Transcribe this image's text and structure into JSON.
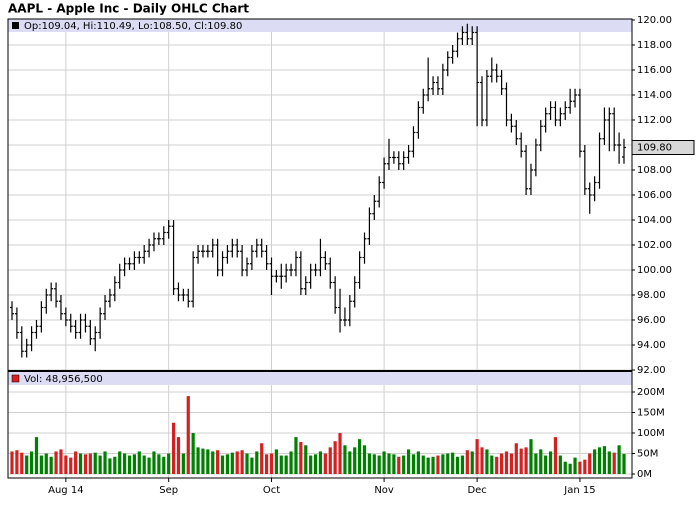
{
  "chart_data": [
    {
      "type": "ohlc",
      "title": "AAPL - Apple Inc - Daily OHLC Chart",
      "legend_text": "Op:109.04, Hi:110.49, Lo:108.50, Cl:109.80",
      "last_label": {
        "value": 109.8,
        "label": "109.80"
      },
      "color": "#000000",
      "grid": true,
      "ylim": [
        92,
        120
      ],
      "yticks": [
        {
          "value": 92,
          "label": "92.00"
        },
        {
          "value": 94,
          "label": "94.00"
        },
        {
          "value": 96,
          "label": "96.00"
        },
        {
          "value": 98,
          "label": "98.00"
        },
        {
          "value": 100,
          "label": "100.00"
        },
        {
          "value": 102,
          "label": "102.00"
        },
        {
          "value": 104,
          "label": "104.00"
        },
        {
          "value": 106,
          "label": "106.00"
        },
        {
          "value": 108,
          "label": "108.00"
        },
        {
          "value": 110,
          "label": "110.00"
        },
        {
          "value": 112,
          "label": "112.00"
        },
        {
          "value": 114,
          "label": "114.00"
        },
        {
          "value": 116,
          "label": "116.00"
        },
        {
          "value": 118,
          "label": "118.00"
        },
        {
          "value": 120,
          "label": "120.00"
        }
      ],
      "open": [
        97,
        96.5,
        95,
        93.5,
        94,
        95,
        95.5,
        97,
        98,
        98.5,
        97.5,
        96.5,
        96,
        95.5,
        95,
        96,
        95.5,
        94.5,
        95,
        96.5,
        97.5,
        98,
        99,
        100,
        100.5,
        100.5,
        101,
        101,
        101.5,
        102,
        102.5,
        102.5,
        103,
        103.5,
        98.5,
        98,
        98,
        97.5,
        101,
        101.5,
        101.5,
        101.5,
        102,
        100,
        101,
        101.5,
        102,
        101.5,
        100,
        100.5,
        101.5,
        102,
        101.5,
        100.5,
        99.5,
        99.5,
        99.5,
        100,
        100,
        101,
        98.5,
        99,
        100,
        100,
        101,
        100.5,
        99,
        97,
        96,
        96,
        97.5,
        99,
        101,
        102.5,
        104.5,
        105.5,
        107,
        108.5,
        109,
        109,
        108.5,
        109,
        109.5,
        111,
        113,
        114,
        114.5,
        115,
        114.5,
        116,
        117,
        117.5,
        118.5,
        119,
        118.5,
        119,
        115,
        112,
        115.5,
        116,
        115.5,
        114.5,
        112,
        111.5,
        110.5,
        109.5,
        106.5,
        108,
        110,
        111.5,
        112.5,
        113,
        112,
        112.5,
        113,
        113.5,
        114,
        109.5,
        106.5,
        106,
        107,
        110.5,
        112,
        112.5,
        110,
        109.04
      ],
      "high": [
        97.5,
        97,
        95.5,
        94.5,
        95.5,
        96,
        97.5,
        98.5,
        99,
        99,
        98,
        97,
        96.5,
        96,
        96.5,
        96.5,
        96,
        95.5,
        97,
        98,
        98.5,
        99.5,
        100.5,
        101,
        101,
        101.5,
        101.5,
        102,
        102.5,
        103,
        103,
        103.5,
        104,
        104,
        99,
        98.5,
        98.5,
        101.5,
        102,
        102,
        102,
        102.5,
        102.5,
        101.5,
        102,
        102.5,
        102.5,
        102,
        101,
        102,
        102.5,
        102.5,
        102,
        101,
        100,
        100.5,
        100.5,
        100.5,
        101.5,
        101.5,
        99.5,
        100.5,
        100.5,
        102.5,
        101.5,
        101,
        99.5,
        98.5,
        97,
        98,
        99.5,
        101.5,
        103,
        105,
        106,
        107.5,
        109,
        110.5,
        109.5,
        109.5,
        109.5,
        110,
        111.5,
        113.5,
        114.5,
        117,
        115.5,
        115.5,
        116.5,
        117.5,
        118,
        119,
        119.5,
        119.7,
        119.5,
        119.5,
        115.5,
        116,
        117,
        116.5,
        116,
        115,
        112.5,
        112,
        111,
        110,
        108.5,
        110.5,
        112,
        113,
        113.5,
        113.5,
        113,
        113.5,
        114.5,
        114.5,
        114.5,
        110,
        107,
        107.5,
        111,
        113,
        113,
        113,
        111,
        110.49
      ],
      "low": [
        96,
        94.5,
        93,
        93,
        93.5,
        94.5,
        95,
        96.5,
        97.5,
        97,
        96,
        95.5,
        95,
        94.5,
        94.5,
        95,
        94,
        93.5,
        94.5,
        96,
        97,
        97.5,
        98.5,
        99.5,
        100,
        100,
        100.5,
        100.5,
        101,
        101.5,
        102,
        102,
        102.5,
        98,
        97.5,
        97.5,
        97,
        97,
        100.5,
        101,
        101,
        101,
        99.5,
        99.5,
        100.5,
        101,
        101,
        99.5,
        99.5,
        100,
        101,
        101,
        100,
        98,
        99,
        98.5,
        99,
        99.5,
        99.5,
        98,
        98,
        98.5,
        99.5,
        99.5,
        100,
        98.5,
        96.5,
        95,
        95.5,
        95.5,
        97,
        98.5,
        100.5,
        102,
        104,
        105,
        106.5,
        108,
        108.5,
        108,
        108,
        108.5,
        109,
        110.5,
        112.5,
        113.5,
        114,
        114,
        114,
        115.5,
        116.5,
        117,
        118,
        118,
        118,
        111.5,
        111.5,
        111.5,
        115,
        115,
        114,
        111.5,
        111,
        110,
        109,
        106,
        106,
        107.5,
        109.5,
        111,
        112,
        111.5,
        111.5,
        112,
        112.5,
        113,
        109,
        106,
        104.5,
        105.5,
        106.5,
        110,
        109.5,
        109.5,
        108.5,
        108.5
      ],
      "close": [
        96.5,
        95,
        93.5,
        94,
        95,
        95.5,
        97,
        98,
        98.5,
        97.5,
        96.5,
        96,
        95.5,
        95,
        96,
        95.5,
        94.5,
        95,
        96.5,
        97.5,
        98,
        99,
        100,
        100.5,
        100.5,
        101,
        101,
        101.5,
        102,
        102.5,
        102.5,
        103,
        103.5,
        98.5,
        98,
        98,
        97.5,
        101,
        101.5,
        101.5,
        101.5,
        102,
        100,
        101,
        101.5,
        102,
        101.5,
        100,
        100.5,
        101.5,
        102,
        101.5,
        100.5,
        99.5,
        99.5,
        99.5,
        100,
        100,
        101,
        98.5,
        99,
        100,
        100,
        101,
        100.5,
        99,
        97,
        96,
        96,
        97.5,
        99,
        101,
        102.5,
        104.5,
        105.5,
        107,
        108.5,
        109,
        109,
        108.5,
        109,
        109.5,
        111,
        113,
        114,
        114.5,
        115,
        114.5,
        116,
        117,
        117.5,
        118.5,
        119,
        118.5,
        119,
        115,
        112,
        115.5,
        116,
        115.5,
        114.5,
        112,
        111.5,
        110.5,
        109.5,
        106.5,
        108,
        110,
        111.5,
        112.5,
        113,
        112,
        112.5,
        113,
        113.5,
        114,
        109.5,
        106.5,
        106,
        107,
        110.5,
        112,
        112.5,
        110,
        110,
        109.8
      ]
    },
    {
      "type": "volume",
      "legend_text": "Vol: 48,956,500",
      "up_color": "#008000",
      "down_color": "#d42020",
      "grid": true,
      "ylim": [
        0,
        250
      ],
      "yticks": [
        {
          "value": 0,
          "label": "0M"
        },
        {
          "value": 50,
          "label": "50M"
        },
        {
          "value": 100,
          "label": "100M"
        },
        {
          "value": 150,
          "label": "150M"
        },
        {
          "value": 200,
          "label": "200M"
        }
      ],
      "categories": [
        null,
        null,
        null,
        null,
        null,
        null,
        null,
        null,
        null,
        null,
        null,
        "Aug 14",
        null,
        null,
        null,
        null,
        null,
        null,
        null,
        null,
        null,
        null,
        null,
        null,
        null,
        null,
        null,
        null,
        null,
        null,
        null,
        null,
        "Sep",
        null,
        null,
        null,
        null,
        null,
        null,
        null,
        null,
        null,
        null,
        null,
        null,
        null,
        null,
        null,
        null,
        null,
        null,
        null,
        null,
        "Oct",
        null,
        null,
        null,
        null,
        null,
        null,
        null,
        null,
        null,
        null,
        null,
        null,
        null,
        null,
        null,
        null,
        null,
        null,
        null,
        null,
        null,
        null,
        "Nov",
        null,
        null,
        null,
        null,
        null,
        null,
        null,
        null,
        null,
        null,
        null,
        null,
        null,
        null,
        null,
        null,
        null,
        null,
        "Dec",
        null,
        null,
        null,
        null,
        null,
        null,
        null,
        null,
        null,
        null,
        null,
        null,
        null,
        null,
        null,
        null,
        null,
        null,
        null,
        null,
        "Jan 15",
        null,
        null,
        null,
        null,
        null,
        null,
        null,
        null,
        null
      ],
      "values": [
        55,
        58,
        52,
        45,
        55,
        90,
        45,
        50,
        42,
        55,
        60,
        45,
        40,
        55,
        50,
        48,
        50,
        52,
        45,
        55,
        38,
        42,
        55,
        50,
        45,
        48,
        55,
        45,
        40,
        55,
        48,
        42,
        50,
        125,
        90,
        50,
        190,
        100,
        65,
        62,
        60,
        55,
        58,
        45,
        48,
        52,
        55,
        58,
        50,
        40,
        55,
        75,
        48,
        50,
        60,
        45,
        45,
        55,
        90,
        78,
        70,
        45,
        48,
        55,
        50,
        65,
        80,
        100,
        70,
        55,
        65,
        85,
        70,
        50,
        48,
        45,
        55,
        50,
        48,
        42,
        45,
        60,
        48,
        55,
        45,
        40,
        42,
        45,
        48,
        50,
        52,
        42,
        45,
        58,
        55,
        85,
        65,
        60,
        45,
        42,
        50,
        55,
        50,
        75,
        62,
        65,
        85,
        50,
        60,
        45,
        55,
        90,
        45,
        30,
        25,
        40,
        30,
        35,
        50,
        60,
        65,
        68,
        55,
        52,
        70,
        48.9565
      ]
    }
  ]
}
